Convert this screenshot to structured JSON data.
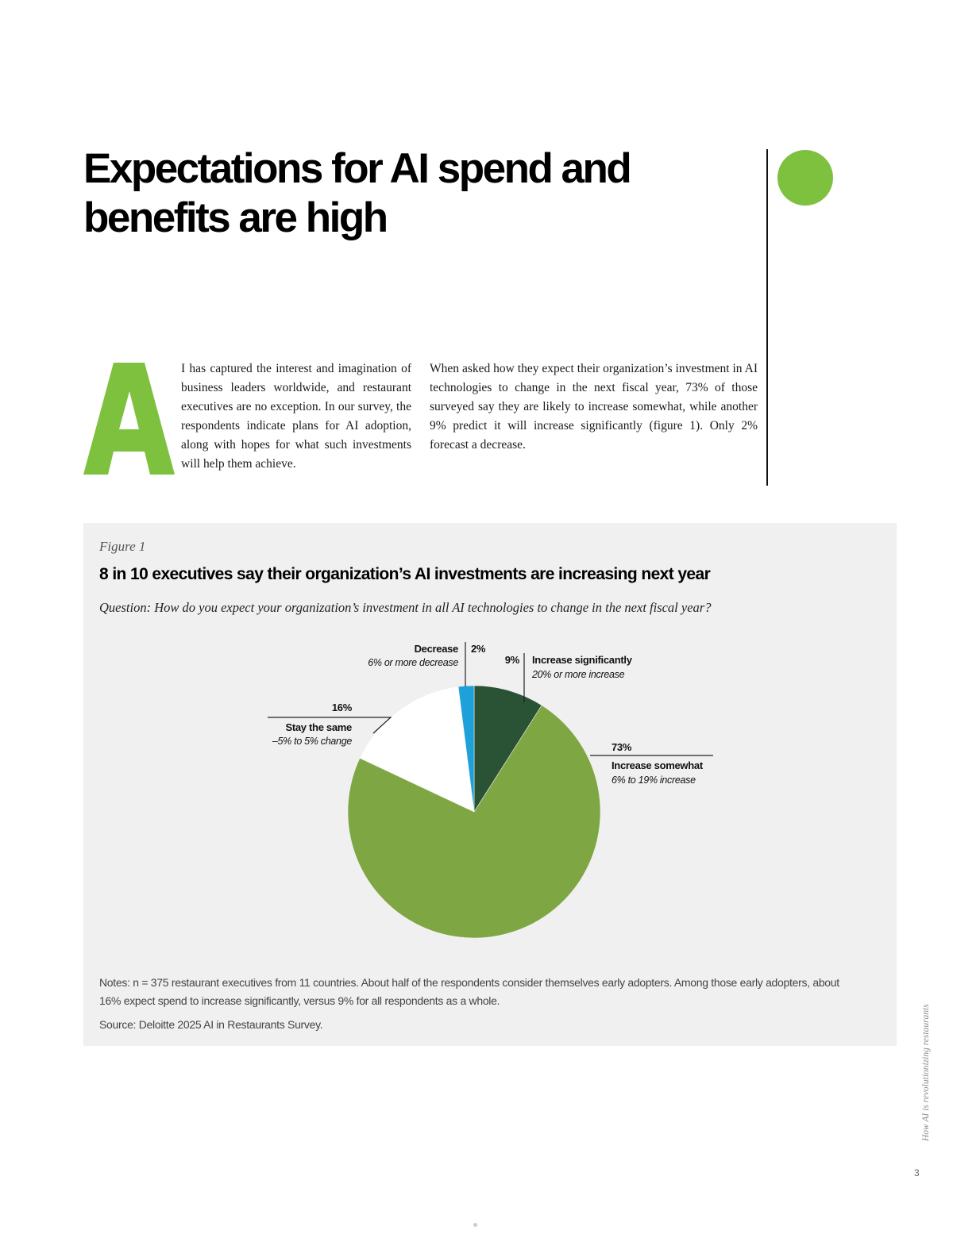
{
  "headline": "Expectations for AI spend and benefits are high",
  "intro": {
    "dropcap": "A",
    "text": "I has captured the interest and imagination of business leaders worldwide, and restaurant executives are no exception. In our survey, the respondents indicate plans for AI adoption, along with hopes for what such investments will help them achieve."
  },
  "body_right": "When asked how they expect their organization’s investment in AI technologies to change in the next fiscal year, 73% of those surveyed say they are likely to increase somewhat, while another 9% predict it will increase significantly (figure 1). Only 2% forecast a decrease.",
  "figure": {
    "label": "Figure 1",
    "title": "8 in 10 executives say their organization’s AI investments are increasing next year",
    "question": "Question: How do you expect your organization’s investment in all AI technologies to change in the next fiscal year?",
    "notes": "Notes: n = 375 restaurant executives from 11 countries. About half of the respondents consider themselves early adopters. Among those early adopters, about 16% expect spend to increase significantly, versus 9% for all respondents as a whole.",
    "source": "Source: Deloitte 2025 AI in Restaurants Survey."
  },
  "chart_data": {
    "type": "pie",
    "title": "8 in 10 executives say their organization’s AI investments are increasing next year",
    "slices": [
      {
        "name": "Increase significantly",
        "sub": "20% or more increase",
        "value": 9,
        "label": "9%",
        "color": "#2a5234"
      },
      {
        "name": "Increase somewhat",
        "sub": "6% to 19% increase",
        "value": 73,
        "label": "73%",
        "color": "#7ea642"
      },
      {
        "name": "Stay the same",
        "sub": "–5% to 5% change",
        "value": 16,
        "label": "16%",
        "color": "#ffffff"
      },
      {
        "name": "Decrease",
        "sub": "6% or more decrease",
        "value": 2,
        "label": "2%",
        "color": "#1da1d8"
      }
    ]
  },
  "sidebar": {
    "running_title": "How AI is revolutionizing restaurants",
    "page_number": "3"
  },
  "colors": {
    "accent_green": "#7dc13f",
    "panel_bg": "#f0f0f0"
  }
}
